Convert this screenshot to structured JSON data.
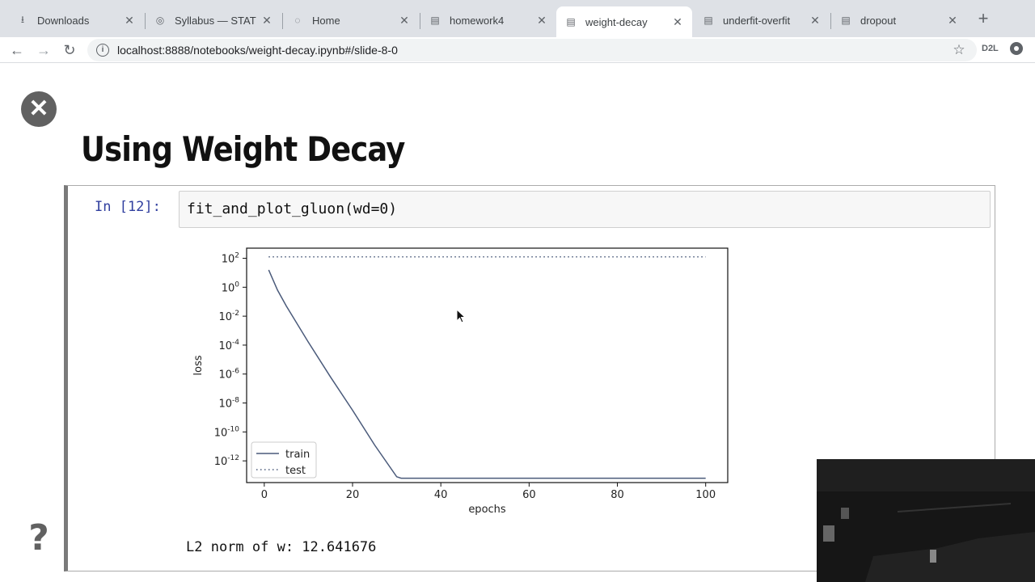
{
  "tabs": [
    {
      "label": "Downloads",
      "icon": "download-icon",
      "active": false
    },
    {
      "label": "Syllabus — STAT",
      "icon": "globe-icon",
      "active": false
    },
    {
      "label": "Home",
      "icon": "loading-icon",
      "active": false
    },
    {
      "label": "homework4",
      "icon": "notebook-icon",
      "active": false
    },
    {
      "label": "weight-decay",
      "icon": "notebook-icon",
      "active": true
    },
    {
      "label": "underfit-overfit",
      "icon": "notebook-icon",
      "active": false
    },
    {
      "label": "dropout",
      "icon": "notebook-icon",
      "active": false
    }
  ],
  "toolbar": {
    "url": "localhost:8888/notebooks/weight-decay.ipynb#/slide-8-0",
    "extension_label": "D2L"
  },
  "slide": {
    "title": "Using Weight Decay",
    "help_label": "?"
  },
  "cell": {
    "prompt": "In [12]:",
    "code": "fit_and_plot_gluon(wd=0)",
    "output": "L2 norm of w: 12.641676"
  },
  "chart_data": {
    "type": "line",
    "xlabel": "epochs",
    "ylabel": "loss",
    "x_scale": "linear",
    "y_scale": "log",
    "xlim": [
      -4,
      105
    ],
    "ylim_exp": [
      -13.5,
      2.7
    ],
    "x_ticks": [
      0,
      20,
      40,
      60,
      80,
      100
    ],
    "y_ticks": [
      {
        "exp": 2,
        "label": "10^2"
      },
      {
        "exp": 0,
        "label": "10^0"
      },
      {
        "exp": -2,
        "label": "10^-2"
      },
      {
        "exp": -4,
        "label": "10^-4"
      },
      {
        "exp": -6,
        "label": "10^-6"
      },
      {
        "exp": -8,
        "label": "10^-8"
      },
      {
        "exp": -10,
        "label": "10^-10"
      },
      {
        "exp": -12,
        "label": "10^-12"
      }
    ],
    "legend_position": "lower-left",
    "series": [
      {
        "name": "train",
        "style": "solid",
        "color": "#4a5a7a",
        "x": [
          1,
          3,
          5,
          10,
          15,
          20,
          25,
          30,
          31,
          33,
          36,
          39,
          40,
          42,
          44,
          46,
          48,
          50,
          52,
          55,
          58,
          60,
          63,
          66,
          68,
          70,
          73,
          76,
          80,
          84,
          88,
          91,
          93,
          96,
          99,
          100
        ],
        "log10_y": [
          1.2,
          -0.2,
          -1.3,
          -3.8,
          -6.2,
          -8.5,
          -10.9,
          -13.1,
          -13.3,
          -13.6,
          -13.8,
          -14.1,
          -14.1,
          -14.1,
          -14.1,
          -14.0,
          -14.2,
          -14.4,
          -14.4,
          -14.5,
          -14.4,
          -14.4,
          -14.5,
          -14.5,
          -14.4,
          -14.5,
          -14.5,
          -14.5,
          -14.4,
          -14.5,
          -14.5,
          -14.4,
          -14.5,
          -14.6,
          -14.6,
          -14.6
        ]
      },
      {
        "name": "test",
        "style": "dotted",
        "color": "#4a5a7a",
        "x": [
          1,
          100
        ],
        "log10_y": [
          2.1,
          2.1
        ]
      }
    ]
  }
}
